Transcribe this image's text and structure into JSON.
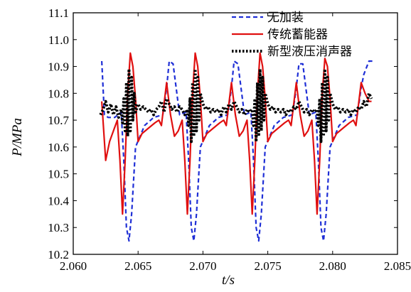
{
  "chart_data": {
    "type": "line",
    "xlabel": "t/s",
    "ylabel": "P/MPa",
    "xlim": [
      2.06,
      2.085
    ],
    "ylim": [
      10.2,
      11.1
    ],
    "xticks": [
      "2.060",
      "2.065",
      "2.070",
      "2.075",
      "2.080",
      "2.085"
    ],
    "yticks": [
      "10.2",
      "10.3",
      "10.4",
      "10.5",
      "10.6",
      "10.7",
      "10.8",
      "10.9",
      "11.0",
      "11.1"
    ],
    "legend_position": "top-right",
    "series": [
      {
        "name": "无加装",
        "color": "#1f2fd6",
        "style": "dashed",
        "x": [
          2.0622,
          2.0624,
          2.0627,
          2.0632,
          2.0637,
          2.0639,
          2.0641,
          2.0643,
          2.0645,
          2.0648,
          2.0655,
          2.0662,
          2.0669,
          2.0672,
          2.0674,
          2.0677,
          2.0682,
          2.0687,
          2.0689,
          2.0691,
          2.0693,
          2.0695,
          2.0698,
          2.0705,
          2.0712,
          2.0719,
          2.0722,
          2.0724,
          2.0727,
          2.0732,
          2.0737,
          2.0739,
          2.0741,
          2.0743,
          2.0745,
          2.0748,
          2.0755,
          2.0762,
          2.0769,
          2.0772,
          2.0774,
          2.0777,
          2.0782,
          2.0787,
          2.0789,
          2.0791,
          2.0793,
          2.0795,
          2.0798,
          2.0805,
          2.0812,
          2.0819,
          2.0822,
          2.0824,
          2.0828,
          2.0832
        ],
        "y": [
          10.92,
          10.72,
          10.71,
          10.71,
          10.73,
          10.55,
          10.3,
          10.25,
          10.35,
          10.6,
          10.68,
          10.71,
          10.72,
          10.82,
          10.92,
          10.91,
          10.72,
          10.73,
          10.55,
          10.3,
          10.25,
          10.35,
          10.6,
          10.68,
          10.71,
          10.72,
          10.82,
          10.92,
          10.91,
          10.72,
          10.73,
          10.55,
          10.3,
          10.25,
          10.35,
          10.6,
          10.68,
          10.71,
          10.72,
          10.82,
          10.91,
          10.91,
          10.72,
          10.73,
          10.55,
          10.3,
          10.25,
          10.35,
          10.6,
          10.68,
          10.71,
          10.72,
          10.82,
          10.87,
          10.92,
          10.92
        ]
      },
      {
        "name": "传统蓄能器",
        "color": "#e01010",
        "style": "solid",
        "x": [
          2.0622,
          2.0625,
          2.0628,
          2.0631,
          2.0634,
          2.0636,
          2.0638,
          2.064,
          2.0642,
          2.0644,
          2.0646,
          2.0648,
          2.065,
          2.0653,
          2.0658,
          2.0663,
          2.0666,
          2.0668,
          2.0672,
          2.0675,
          2.0678,
          2.0681,
          2.0684,
          2.0686,
          2.0688,
          2.069,
          2.0692,
          2.0694,
          2.0696,
          2.0698,
          2.07,
          2.0703,
          2.0708,
          2.0713,
          2.0716,
          2.0718,
          2.0722,
          2.0725,
          2.0728,
          2.0731,
          2.0734,
          2.0736,
          2.0738,
          2.074,
          2.0742,
          2.0744,
          2.0746,
          2.0748,
          2.075,
          2.0753,
          2.0758,
          2.0763,
          2.0766,
          2.0768,
          2.0772,
          2.0775,
          2.0778,
          2.0781,
          2.0784,
          2.0786,
          2.0788,
          2.079,
          2.0792,
          2.0794,
          2.0796,
          2.0798,
          2.08,
          2.0803,
          2.0808,
          2.0813,
          2.0816,
          2.0818,
          2.0822,
          2.0825,
          2.0828,
          2.083
        ],
        "y": [
          10.77,
          10.55,
          10.62,
          10.66,
          10.7,
          10.55,
          10.35,
          10.55,
          10.8,
          10.95,
          10.9,
          10.78,
          10.62,
          10.65,
          10.67,
          10.69,
          10.7,
          10.68,
          10.84,
          10.72,
          10.64,
          10.66,
          10.7,
          10.55,
          10.35,
          10.55,
          10.8,
          10.95,
          10.9,
          10.78,
          10.62,
          10.65,
          10.67,
          10.69,
          10.7,
          10.68,
          10.84,
          10.72,
          10.64,
          10.66,
          10.7,
          10.55,
          10.35,
          10.55,
          10.8,
          10.95,
          10.9,
          10.78,
          10.62,
          10.65,
          10.67,
          10.69,
          10.7,
          10.68,
          10.84,
          10.72,
          10.64,
          10.66,
          10.7,
          10.55,
          10.35,
          10.55,
          10.8,
          10.93,
          10.9,
          10.78,
          10.62,
          10.65,
          10.67,
          10.69,
          10.7,
          10.68,
          10.84,
          10.8,
          10.77,
          10.77
        ]
      },
      {
        "name": "新型液压消声器",
        "color": "#000000",
        "style": "dotted",
        "x": [
          2.0621,
          2.0623,
          2.0625,
          2.0627,
          2.0629,
          2.0631,
          2.0633,
          2.0635,
          2.0637,
          2.0638,
          2.0639,
          2.064,
          2.0641,
          2.0642,
          2.0643,
          2.0644,
          2.0645,
          2.0646,
          2.0647,
          2.0648,
          2.065,
          2.0652,
          2.0654,
          2.0656,
          2.0658,
          2.066,
          2.0662,
          2.0664,
          2.0666,
          2.0668,
          2.067,
          2.0672,
          2.0674,
          2.0676,
          2.0678,
          2.068,
          2.0682,
          2.0684,
          2.0686,
          2.0688,
          2.0689,
          2.069,
          2.0691,
          2.0692,
          2.0693,
          2.0694,
          2.0695,
          2.0696,
          2.0697,
          2.0698,
          2.07,
          2.0702,
          2.0704,
          2.0706,
          2.0708,
          2.071,
          2.0712,
          2.0714,
          2.0716,
          2.0718,
          2.072,
          2.0722,
          2.0724,
          2.0726,
          2.0728,
          2.073,
          2.0732,
          2.0734,
          2.0736,
          2.0738,
          2.0739,
          2.074,
          2.0741,
          2.0742,
          2.0743,
          2.0744,
          2.0745,
          2.0746,
          2.0747,
          2.0748,
          2.075,
          2.0752,
          2.0754,
          2.0756,
          2.0758,
          2.076,
          2.0762,
          2.0764,
          2.0766,
          2.0768,
          2.077,
          2.0772,
          2.0774,
          2.0776,
          2.0778,
          2.078,
          2.0782,
          2.0784,
          2.0786,
          2.0788,
          2.0789,
          2.079,
          2.0791,
          2.0792,
          2.0793,
          2.0794,
          2.0795,
          2.0796,
          2.0797,
          2.0798,
          2.08,
          2.0802,
          2.0804,
          2.0806,
          2.0808,
          2.081,
          2.0812,
          2.0814,
          2.0816,
          2.0818,
          2.082,
          2.0822,
          2.0824,
          2.0826,
          2.0828,
          2.083
        ],
        "y": [
          10.72,
          10.74,
          10.77,
          10.73,
          10.76,
          10.72,
          10.75,
          10.71,
          10.74,
          10.69,
          10.78,
          10.66,
          10.84,
          10.64,
          10.89,
          10.66,
          10.86,
          10.7,
          10.8,
          10.73,
          10.76,
          10.74,
          10.75,
          10.74,
          10.73,
          10.74,
          10.72,
          10.74,
          10.75,
          10.77,
          10.73,
          10.78,
          10.76,
          10.74,
          10.75,
          10.73,
          10.75,
          10.74,
          10.72,
          10.74,
          10.68,
          10.78,
          10.62,
          10.84,
          10.64,
          10.89,
          10.66,
          10.86,
          10.7,
          10.8,
          10.76,
          10.74,
          10.75,
          10.73,
          10.74,
          10.73,
          10.74,
          10.72,
          10.75,
          10.73,
          10.76,
          10.74,
          10.77,
          10.75,
          10.73,
          10.74,
          10.72,
          10.74,
          10.73,
          10.74,
          10.68,
          10.78,
          10.62,
          10.84,
          10.64,
          10.89,
          10.66,
          10.86,
          10.7,
          10.8,
          10.76,
          10.74,
          10.75,
          10.73,
          10.74,
          10.73,
          10.74,
          10.72,
          10.74,
          10.73,
          10.75,
          10.74,
          10.77,
          10.75,
          10.73,
          10.74,
          10.72,
          10.74,
          10.73,
          10.74,
          10.68,
          10.78,
          10.62,
          10.84,
          10.64,
          10.89,
          10.66,
          10.86,
          10.7,
          10.8,
          10.76,
          10.74,
          10.75,
          10.73,
          10.74,
          10.73,
          10.74,
          10.72,
          10.74,
          10.73,
          10.75,
          10.74,
          10.77,
          10.75,
          10.8,
          10.78
        ]
      }
    ]
  }
}
